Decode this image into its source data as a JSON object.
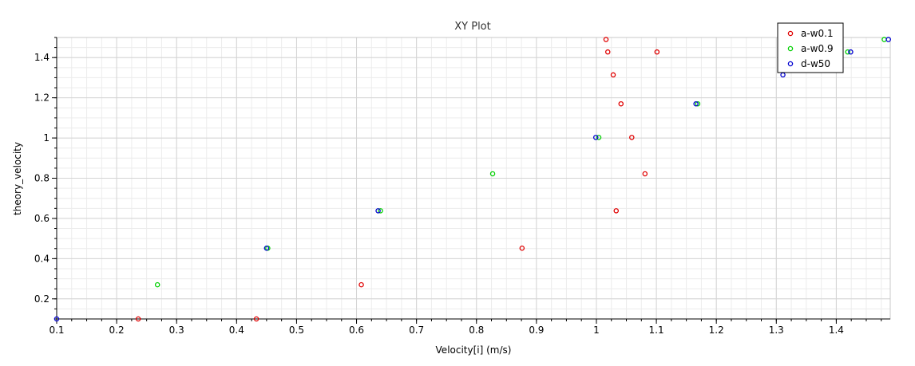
{
  "chart_data": {
    "type": "scatter",
    "title": "XY Plot",
    "xlabel": "Velocity[i] (m/s)",
    "ylabel": "theory_velocity",
    "xlim": [
      0.1,
      1.49
    ],
    "ylim": [
      0.1,
      1.5
    ],
    "x_ticks": [
      0.1,
      0.2,
      0.3,
      0.4,
      0.5,
      0.6,
      0.7,
      0.8,
      0.9,
      1,
      1.1,
      1.2,
      1.3,
      1.4
    ],
    "x_tick_labels": [
      "0.1",
      "0.2",
      "0.3",
      "0.4",
      "0.5",
      "0.6",
      "0.7",
      "0.8",
      "0.9",
      "1",
      "1.1",
      "1.2",
      "1.3",
      "1.4"
    ],
    "y_ticks": [
      0.2,
      0.4,
      0.6,
      0.8,
      1,
      1.2,
      1.4
    ],
    "y_tick_labels": [
      "0.2",
      "0.4",
      "0.6",
      "0.8",
      "1",
      "1.2",
      "1.4"
    ],
    "grid": true,
    "legend_position": "top-right",
    "series": [
      {
        "name": "a-w0.1",
        "color": "#e00000",
        "points": [
          {
            "x": 0.236,
            "y": 0.1
          },
          {
            "x": 0.433,
            "y": 0.1
          },
          {
            "x": 0.608,
            "y": 0.27
          },
          {
            "x": 0.876,
            "y": 0.452
          },
          {
            "x": 1.033,
            "y": 0.638
          },
          {
            "x": 1.081,
            "y": 0.822
          },
          {
            "x": 1.059,
            "y": 1.003
          },
          {
            "x": 1.041,
            "y": 1.17
          },
          {
            "x": 1.028,
            "y": 1.314
          },
          {
            "x": 1.019,
            "y": 1.428
          },
          {
            "x": 1.016,
            "y": 1.49
          },
          {
            "x": 1.101,
            "y": 1.428
          }
        ]
      },
      {
        "name": "a-w0.9",
        "color": "#00d000",
        "points": [
          {
            "x": 0.268,
            "y": 0.27
          },
          {
            "x": 0.452,
            "y": 0.452
          },
          {
            "x": 0.64,
            "y": 0.638
          },
          {
            "x": 0.827,
            "y": 0.822
          },
          {
            "x": 1.004,
            "y": 1.003
          },
          {
            "x": 1.169,
            "y": 1.17
          },
          {
            "x": 1.419,
            "y": 1.428
          },
          {
            "x": 1.48,
            "y": 1.49
          }
        ]
      },
      {
        "name": "d-w50",
        "color": "#0000d0",
        "points": [
          {
            "x": 0.1,
            "y": 0.1
          },
          {
            "x": 0.45,
            "y": 0.452
          },
          {
            "x": 0.636,
            "y": 0.638
          },
          {
            "x": 0.999,
            "y": 1.003
          },
          {
            "x": 1.166,
            "y": 1.17
          },
          {
            "x": 1.311,
            "y": 1.314
          },
          {
            "x": 1.424,
            "y": 1.428
          },
          {
            "x": 1.487,
            "y": 1.49
          }
        ]
      }
    ]
  }
}
